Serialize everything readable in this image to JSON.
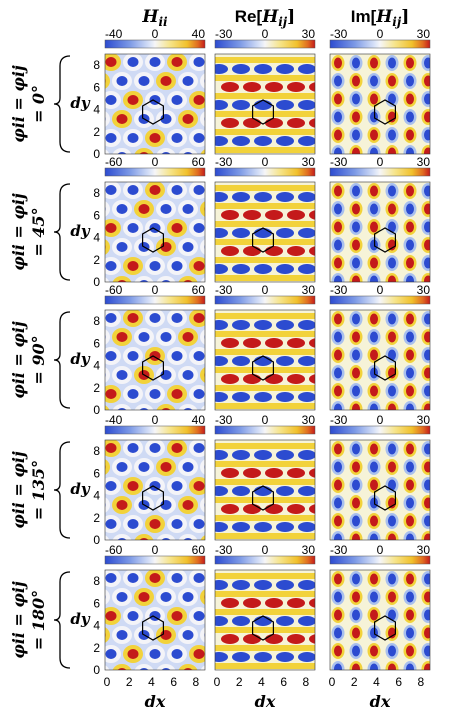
{
  "columns": [
    {
      "title_main": "H",
      "title_sub": "ii",
      "title_prefix": "",
      "title_suffix": ""
    },
    {
      "title_main": "H",
      "title_sub": "ij",
      "title_prefix": "Re[",
      "title_suffix": "]"
    },
    {
      "title_main": "H",
      "title_sub": "ij",
      "title_prefix": "Im[",
      "title_suffix": "]"
    }
  ],
  "rows": [
    {
      "label_line1": "φii = φij",
      "label_line2": "= 0°",
      "cb": [
        [
          "-40",
          "0",
          "40"
        ],
        [
          "-30",
          "0",
          "30"
        ],
        [
          "-30",
          "0",
          "30"
        ]
      ]
    },
    {
      "label_line1": "φii = φij",
      "label_line2": "= 45°",
      "cb": [
        [
          "-60",
          "0",
          "60"
        ],
        [
          "-30",
          "0",
          "30"
        ],
        [
          "-30",
          "0",
          "30"
        ]
      ]
    },
    {
      "label_line1": "φii = φij",
      "label_line2": "= 90°",
      "cb": [
        [
          "-60",
          "0",
          "60"
        ],
        [
          "-30",
          "0",
          "30"
        ],
        [
          "-30",
          "0",
          "30"
        ]
      ]
    },
    {
      "label_line1": "φii = φij",
      "label_line2": "= 135°",
      "cb": [
        [
          "-40",
          "0",
          "40"
        ],
        [
          "-30",
          "0",
          "30"
        ],
        [
          "-30",
          "0",
          "30"
        ]
      ]
    },
    {
      "label_line1": "φii = φij",
      "label_line2": "= 180°",
      "cb": [
        [
          "-60",
          "0",
          "60"
        ],
        [
          "-30",
          "0",
          "30"
        ],
        [
          "-30",
          "0",
          "30"
        ]
      ]
    }
  ],
  "axes": {
    "y_label": "dy",
    "x_label": "dx",
    "y_ticks": [
      "0",
      "2",
      "4",
      "6",
      "8"
    ],
    "x_ticks": [
      "0",
      "2",
      "4",
      "6",
      "8"
    ]
  },
  "colors": {
    "low": "#2c4bd0",
    "mid_low": "#a9c0ee",
    "zero": "#f4f4f8",
    "mid_high": "#f2d23a",
    "high": "#c41a1a",
    "frame": "#000000"
  }
}
